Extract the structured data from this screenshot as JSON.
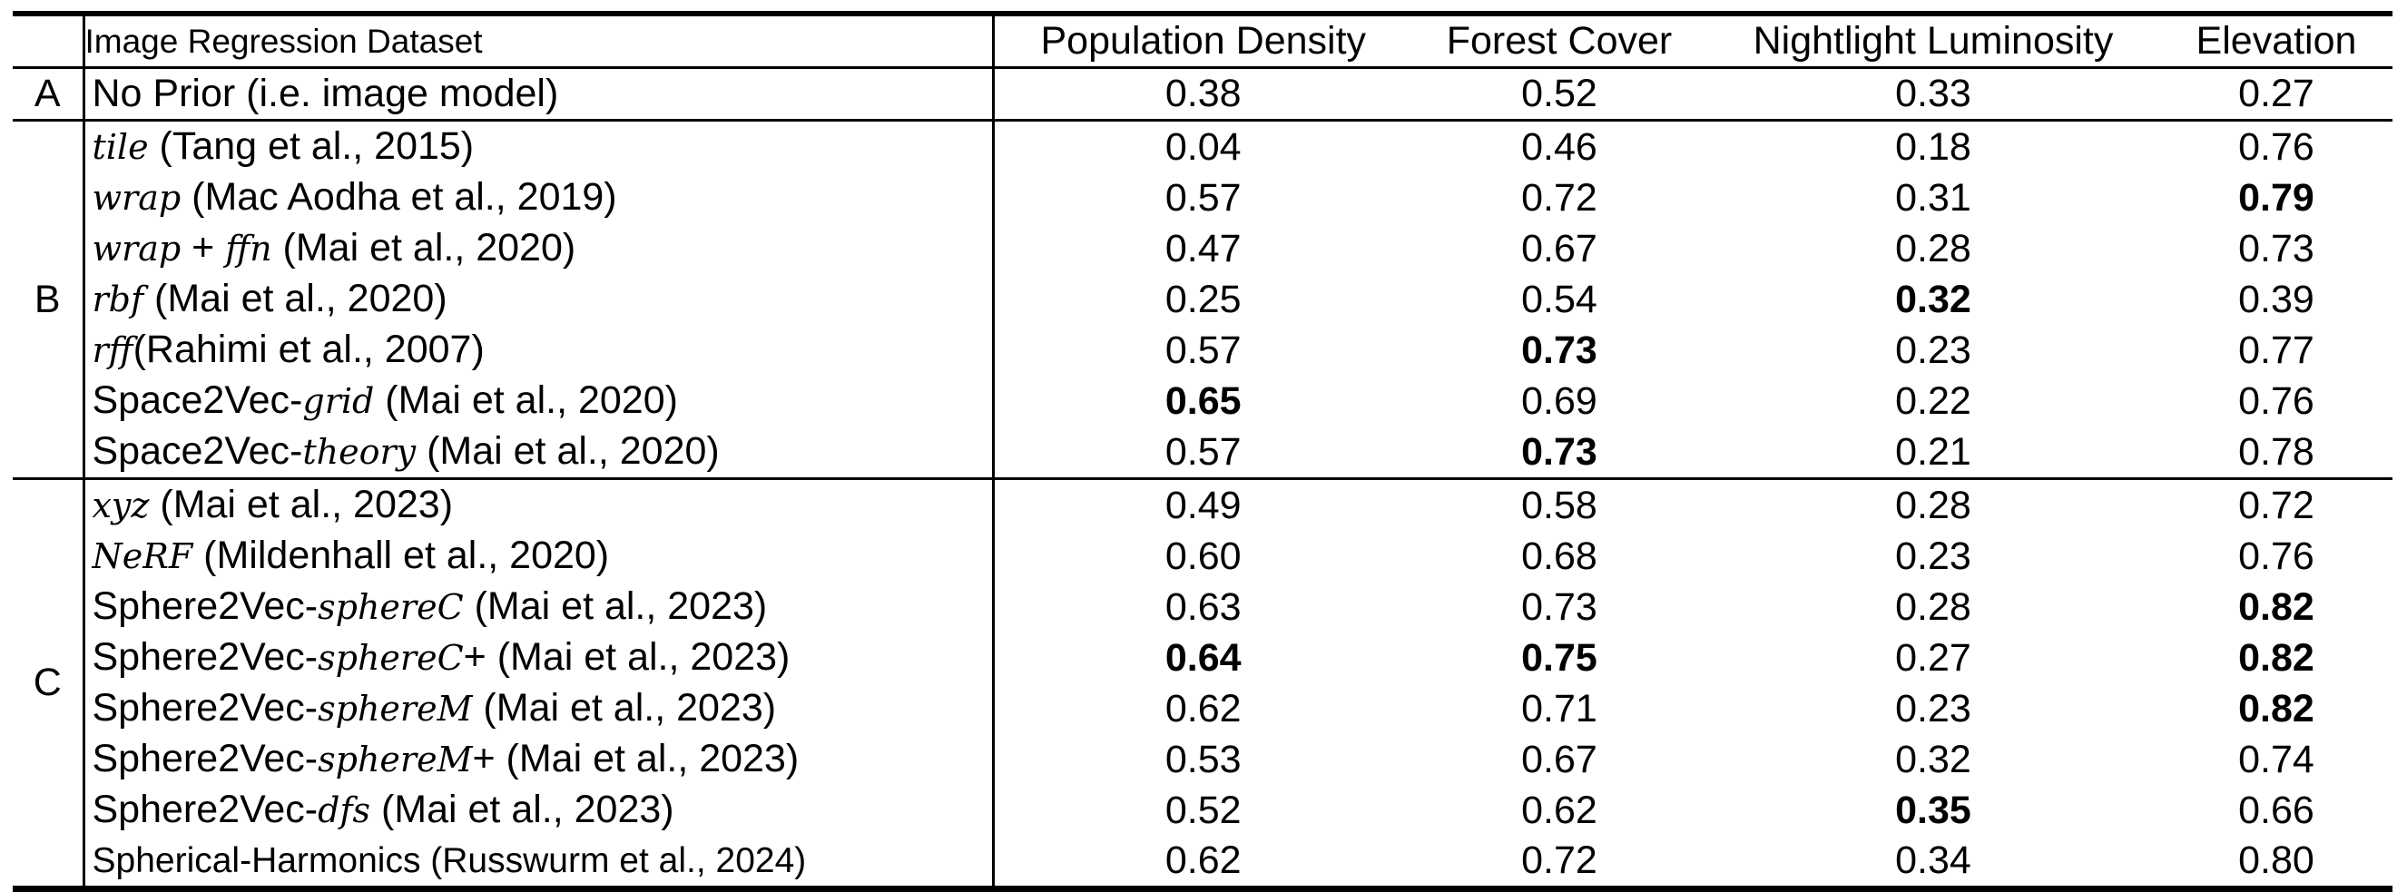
{
  "table": {
    "header": {
      "dataset": "Image Regression Dataset",
      "columns": [
        "Population Density",
        "Forest Cover",
        "Nightlight Luminosity",
        "Elevation"
      ]
    },
    "groups": [
      {
        "label": "A",
        "rows": [
          {
            "method": [
              {
                "t": "No Prior (i.e. image model)",
                "i": false
              }
            ],
            "values": [
              "0.38",
              "0.52",
              "0.33",
              "0.27"
            ],
            "bold": [
              false,
              false,
              false,
              false
            ]
          }
        ]
      },
      {
        "label": "B",
        "rows": [
          {
            "method": [
              {
                "t": "tile",
                "i": true
              },
              {
                "t": " (Tang et al., 2015)",
                "i": false
              }
            ],
            "values": [
              "0.04",
              "0.46",
              "0.18",
              "0.76"
            ],
            "bold": [
              false,
              false,
              false,
              false
            ]
          },
          {
            "method": [
              {
                "t": "wrap",
                "i": true
              },
              {
                "t": " (Mac Aodha et al., 2019)",
                "i": false
              }
            ],
            "values": [
              "0.57",
              "0.72",
              "0.31",
              "0.79"
            ],
            "bold": [
              false,
              false,
              false,
              true
            ]
          },
          {
            "method": [
              {
                "t": "wrap",
                "i": true
              },
              {
                "t": " + ",
                "i": false
              },
              {
                "t": "ffn",
                "i": true
              },
              {
                "t": " (Mai et al., 2020)",
                "i": false
              }
            ],
            "values": [
              "0.47",
              "0.67",
              "0.28",
              "0.73"
            ],
            "bold": [
              false,
              false,
              false,
              false
            ]
          },
          {
            "method": [
              {
                "t": "rbf",
                "i": true
              },
              {
                "t": " (Mai et al., 2020)",
                "i": false
              }
            ],
            "values": [
              "0.25",
              "0.54",
              "0.32",
              "0.39"
            ],
            "bold": [
              false,
              false,
              true,
              false
            ]
          },
          {
            "method": [
              {
                "t": "rff",
                "i": true
              },
              {
                "t": "(Rahimi et al., 2007)",
                "i": false
              }
            ],
            "values": [
              "0.57",
              "0.73",
              "0.23",
              "0.77"
            ],
            "bold": [
              false,
              true,
              false,
              false
            ]
          },
          {
            "method": [
              {
                "t": "Space2Vec-",
                "i": false
              },
              {
                "t": "grid",
                "i": true
              },
              {
                "t": " (Mai et al., 2020)",
                "i": false
              }
            ],
            "values": [
              "0.65",
              "0.69",
              "0.22",
              "0.76"
            ],
            "bold": [
              true,
              false,
              false,
              false
            ]
          },
          {
            "method": [
              {
                "t": "Space2Vec-",
                "i": false
              },
              {
                "t": "theory",
                "i": true
              },
              {
                "t": " (Mai et al., 2020)",
                "i": false
              }
            ],
            "values": [
              "0.57",
              "0.73",
              "0.21",
              "0.78"
            ],
            "bold": [
              false,
              true,
              false,
              false
            ]
          }
        ]
      },
      {
        "label": "C",
        "rows": [
          {
            "method": [
              {
                "t": "xyz",
                "i": true
              },
              {
                "t": " (Mai et al., 2023)",
                "i": false
              }
            ],
            "values": [
              "0.49",
              "0.58",
              "0.28",
              "0.72"
            ],
            "bold": [
              false,
              false,
              false,
              false
            ]
          },
          {
            "method": [
              {
                "t": "NeRF",
                "i": true
              },
              {
                "t": " (Mildenhall et al., 2020)",
                "i": false
              }
            ],
            "values": [
              "0.60",
              "0.68",
              "0.23",
              "0.76"
            ],
            "bold": [
              false,
              false,
              false,
              false
            ]
          },
          {
            "method": [
              {
                "t": "Sphere2Vec-",
                "i": false
              },
              {
                "t": "sphereC",
                "i": true
              },
              {
                "t": " (Mai et al., 2023)",
                "i": false
              }
            ],
            "values": [
              "0.63",
              "0.73",
              "0.28",
              "0.82"
            ],
            "bold": [
              false,
              false,
              false,
              true
            ]
          },
          {
            "method": [
              {
                "t": "Sphere2Vec-",
                "i": false
              },
              {
                "t": "sphereC",
                "i": true
              },
              {
                "t": "+ (Mai et al., 2023)",
                "i": false
              }
            ],
            "values": [
              "0.64",
              "0.75",
              "0.27",
              "0.82"
            ],
            "bold": [
              true,
              true,
              false,
              true
            ]
          },
          {
            "method": [
              {
                "t": "Sphere2Vec-",
                "i": false
              },
              {
                "t": "sphereM",
                "i": true
              },
              {
                "t": " (Mai et al., 2023)",
                "i": false
              }
            ],
            "values": [
              "0.62",
              "0.71",
              "0.23",
              "0.82"
            ],
            "bold": [
              false,
              false,
              false,
              true
            ]
          },
          {
            "method": [
              {
                "t": "Sphere2Vec-",
                "i": false
              },
              {
                "t": "sphereM",
                "i": true
              },
              {
                "t": "+ (Mai et al., 2023)",
                "i": false
              }
            ],
            "values": [
              "0.53",
              "0.67",
              "0.32",
              "0.74"
            ],
            "bold": [
              false,
              false,
              false,
              false
            ]
          },
          {
            "method": [
              {
                "t": "Sphere2Vec-",
                "i": false
              },
              {
                "t": "dfs",
                "i": true
              },
              {
                "t": " (Mai et al., 2023)",
                "i": false
              }
            ],
            "values": [
              "0.52",
              "0.62",
              "0.35",
              "0.66"
            ],
            "bold": [
              false,
              false,
              true,
              false
            ]
          },
          {
            "method": [
              {
                "t": "Spherical-Harmonics (Russwurm et al., 2024)",
                "i": false
              }
            ],
            "values": [
              "0.62",
              "0.72",
              "0.34",
              "0.80"
            ],
            "bold": [
              false,
              false,
              false,
              false
            ],
            "small": true
          }
        ]
      }
    ]
  }
}
